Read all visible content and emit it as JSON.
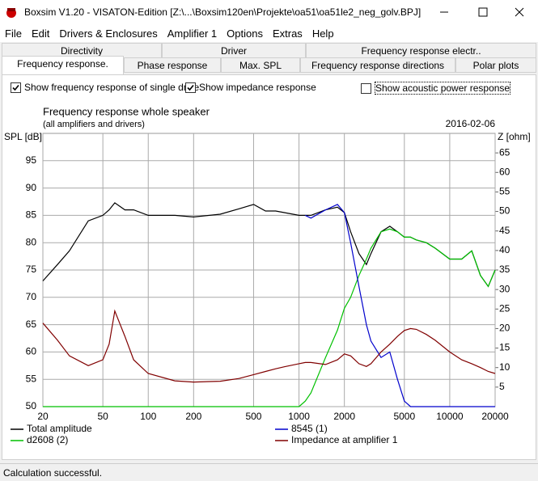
{
  "window": {
    "title": "Boxsim V1.20 - VISATON-Edition [Z:\\...\\Boxsim120en\\Projekte\\oa51\\oa51le2_neg_golv.BPJ]"
  },
  "menu": [
    "File",
    "Edit",
    "Drivers & Enclosures",
    "Amplifier 1",
    "Options",
    "Extras",
    "Help"
  ],
  "tabs": {
    "back_row": [
      "Directivity",
      "Driver",
      "Frequency response electr.."
    ],
    "front_row": [
      "Frequency response.",
      "Phase response",
      "Max. SPL",
      "Frequency response directions",
      "Polar plots"
    ],
    "active": "Frequency response."
  },
  "options": [
    {
      "label": "Show frequency response of single drive",
      "checked": true
    },
    {
      "label": "Show impedance response",
      "checked": true
    },
    {
      "label": "Show acoustic power response",
      "checked": false
    }
  ],
  "chart_data": {
    "type": "line",
    "title": "Frequency response whole speaker",
    "subtitle": "(all amplifiers and drivers)",
    "date": "2016-02-06",
    "y_label": "SPL [dB]",
    "y2_label": "Z [ohm]",
    "log_x": true,
    "grid": true,
    "x": [
      20,
      25,
      30,
      40,
      50,
      55,
      60,
      70,
      80,
      100,
      150,
      200,
      300,
      400,
      500,
      600,
      700,
      800,
      1000,
      1100,
      1200,
      1500,
      1800,
      2000,
      2200,
      2500,
      2800,
      3000,
      3500,
      4000,
      4500,
      5000,
      5500,
      6000,
      7000,
      8000,
      10000,
      12000,
      14000,
      16000,
      18000,
      20000
    ],
    "xlim": [
      20,
      20000
    ],
    "xticks": [
      20,
      50,
      100,
      200,
      500,
      1000,
      2000,
      5000,
      10000,
      20000
    ],
    "ylim": [
      50,
      100
    ],
    "yticks": [
      50,
      55,
      60,
      65,
      70,
      75,
      80,
      85,
      90,
      95
    ],
    "y2lim": [
      0,
      70
    ],
    "y2ticks": [
      5,
      10,
      15,
      20,
      25,
      30,
      35,
      40,
      45,
      50,
      55,
      60,
      65
    ],
    "series": [
      {
        "name": "Total amplitude",
        "color": "#000000",
        "values": [
          73,
          76,
          78.5,
          84,
          85,
          86,
          87.3,
          86,
          86,
          85,
          85,
          84.7,
          85.2,
          86.2,
          87,
          85.8,
          85.8,
          85.5,
          85,
          85,
          85,
          86,
          86.5,
          85.5,
          82,
          78,
          76,
          78,
          82,
          83,
          82,
          81,
          81,
          80.5,
          80,
          79,
          77,
          77,
          78.5,
          74,
          72,
          75
        ]
      },
      {
        "name": "d2608  (2)",
        "color": "#00c000",
        "values": [
          50,
          50,
          50,
          50,
          50,
          50,
          50,
          50,
          50,
          50,
          50,
          50,
          50,
          50,
          50,
          50,
          50,
          50,
          50,
          51,
          52.5,
          59,
          64,
          68,
          70,
          74,
          77,
          79,
          82,
          82.5,
          82,
          81,
          81,
          80.5,
          80,
          79,
          77,
          77,
          78.5,
          74,
          72,
          75
        ]
      },
      {
        "name": "8545  (1)",
        "color": "#0000cc",
        "values": [
          null,
          null,
          null,
          null,
          null,
          null,
          null,
          null,
          null,
          null,
          null,
          null,
          null,
          null,
          null,
          null,
          null,
          null,
          null,
          85,
          84.5,
          86,
          87,
          85.5,
          80,
          72,
          65,
          62,
          59,
          60,
          55,
          51,
          50,
          50,
          50,
          50,
          50,
          50,
          50,
          50,
          50,
          50
        ]
      },
      {
        "name": "Impedance at amplifier 1",
        "color": "#800000",
        "axis": "y2",
        "values": [
          21.4,
          17,
          13,
          10.5,
          12,
          16,
          24.5,
          18,
          12,
          8.5,
          6.6,
          6.3,
          6.5,
          7.2,
          8.2,
          9,
          9.7,
          10.2,
          11,
          11.3,
          11.3,
          10.8,
          12,
          13.5,
          13,
          11,
          10.3,
          11,
          14,
          16,
          18,
          19.5,
          20,
          19.8,
          18.5,
          17,
          14,
          12,
          11,
          10,
          9,
          8.5
        ]
      }
    ]
  },
  "status": "Calculation successful."
}
